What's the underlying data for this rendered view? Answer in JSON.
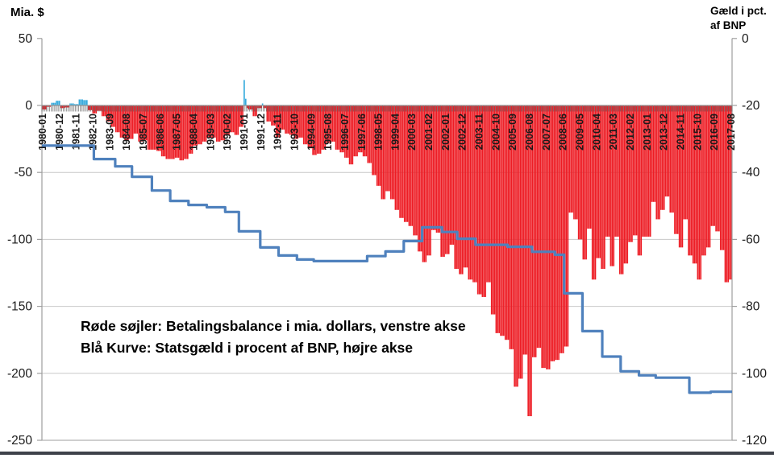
{
  "left_axis_title": "Mia. $",
  "right_axis_title_line1": "Gæld i pct.",
  "right_axis_title_line2": "af BNP",
  "annotation": {
    "line1": "Røde søjler: Betalingsbalance i mia. dollars, venstre akse",
    "line2": "Blå Kurve: Statsgæld i procent af BNP, højre akse"
  },
  "colors": {
    "bar_negative": "#ed1c24",
    "bar_positive": "#33a9dc",
    "debt_line": "#4f81bd",
    "gridline": "#c8c8c8",
    "axis_line": "#9e9e9e",
    "tick_comb": "#6e6e6e",
    "label_text": "#1a1a1a",
    "bottom_border": "#3e424a"
  },
  "chart_data": {
    "type": "bar",
    "title": "",
    "x_start": "1980-01",
    "x_end": "2017-08",
    "months_total": 452,
    "left_ylim": [
      -250,
      50
    ],
    "right_ylim": [
      -120,
      0
    ],
    "left_axis_ticks": [
      50,
      0,
      -50,
      -100,
      -150,
      -200,
      -250
    ],
    "right_axis_ticks": [
      0,
      -20,
      -40,
      -60,
      -80,
      -100,
      -120
    ],
    "grid": "horizontal gridlines at -50,-100,-150,-200,-250 (left axis)",
    "x_tick_labels": [
      "1980-01",
      "1980-12",
      "1981-11",
      "1982-10",
      "1983-09",
      "1984-08",
      "1985-07",
      "1986-06",
      "1987-05",
      "1988-04",
      "1989-03",
      "1990-02",
      "1991-01",
      "1991-12",
      "1992-11",
      "1993-10",
      "1994-09",
      "1995-08",
      "1996-07",
      "1997-06",
      "1998-05",
      "1999-04",
      "2000-03",
      "2001-02",
      "2002-01",
      "2002-12",
      "2003-11",
      "2004-10",
      "2005-09",
      "2006-08",
      "2007-07",
      "2008-06",
      "2009-05",
      "2010-04",
      "2011-03",
      "2012-02",
      "2013-01",
      "2013-12",
      "2014-11",
      "2015-10",
      "2016-09",
      "2017-08"
    ],
    "series": [
      {
        "name": "Betalingsbalance i mia. dollars (venstre akse)",
        "type": "bar",
        "axis": "left",
        "note": "quarterly values 1980Q1-2017Q3, each drawn as 3 monthly bars; positive bars light blue, negative red",
        "quarterly_values": [
          -3,
          -1,
          2,
          3.5,
          -2,
          -1.5,
          1.5,
          1,
          4.5,
          4,
          -3.5,
          -6,
          -4,
          -8,
          -12,
          -16,
          -20,
          -24,
          -26,
          -25,
          -21,
          -27,
          -26,
          -33,
          -33,
          -34,
          -38,
          -40,
          -40,
          -39,
          -41,
          -40,
          -36,
          -30,
          -29,
          -27,
          -24,
          -24,
          -27,
          -26,
          -22,
          -20,
          -22,
          -16,
          -2,
          -3,
          -8,
          -2,
          -2,
          -12,
          -15,
          -24,
          -18,
          -21,
          -22,
          -25,
          -24,
          -29,
          -32,
          -37,
          -36,
          -33,
          -28,
          -27,
          -33,
          -35,
          -39,
          -44,
          -38,
          -35,
          -38,
          -43,
          -52,
          -60,
          -70,
          -64,
          -70,
          -78,
          -84,
          -87,
          -90,
          -97,
          -109,
          -117,
          -112,
          -93,
          -95,
          -113,
          -111,
          -104,
          -122,
          -126,
          -121,
          -130,
          -132,
          -141,
          -143,
          -132,
          -156,
          -170,
          -172,
          -175,
          -182,
          -210,
          -204,
          -186,
          -232,
          -188,
          -181,
          -196,
          -197,
          -191,
          -190,
          -185,
          -180,
          -80,
          -85,
          -100,
          -115,
          -92,
          -130,
          -114,
          -122,
          -98,
          -120,
          -98,
          -126,
          -118,
          -102,
          -97,
          -112,
          -98,
          -98,
          -72,
          -85,
          -78,
          -68,
          -80,
          -96,
          -106,
          -85,
          -112,
          -118,
          -130,
          -112,
          -106,
          -90,
          -94,
          -108,
          -132,
          -130
        ],
        "monthly_overrides": {
          "1991-01": 19,
          "1991-02": 5,
          "1992-01": 1.5
        }
      },
      {
        "name": "Statsgæld i procent af BNP, plottet negativt (højre akse)",
        "type": "step-line",
        "axis": "right",
        "note": "steps given as [month_index_from_1980-01, value]; level holds until next step",
        "steps": [
          [
            0,
            -32
          ],
          [
            34,
            -36
          ],
          [
            48,
            -38.2
          ],
          [
            59,
            -41.3
          ],
          [
            72,
            -45.4
          ],
          [
            84,
            -48.5
          ],
          [
            96,
            -49.7
          ],
          [
            108,
            -50.4
          ],
          [
            120,
            -51.8
          ],
          [
            129,
            -57.6
          ],
          [
            143,
            -62.4
          ],
          [
            155,
            -64.8
          ],
          [
            167,
            -66
          ],
          [
            178,
            -66.5
          ],
          [
            213,
            -65
          ],
          [
            225,
            -63.6
          ],
          [
            237,
            -60.5
          ],
          [
            249,
            -56.4
          ],
          [
            262,
            -57.8
          ],
          [
            272,
            -59.8
          ],
          [
            284,
            -61.6
          ],
          [
            305,
            -62.2
          ],
          [
            321,
            -63.7
          ],
          [
            336,
            -64.6
          ],
          [
            342,
            -76.1
          ],
          [
            354,
            -87.4
          ],
          [
            367,
            -95
          ],
          [
            379,
            -99.4
          ],
          [
            391,
            -100.6
          ],
          [
            402,
            -101.3
          ],
          [
            424,
            -105.8
          ],
          [
            438,
            -105.5
          ]
        ]
      }
    ]
  }
}
